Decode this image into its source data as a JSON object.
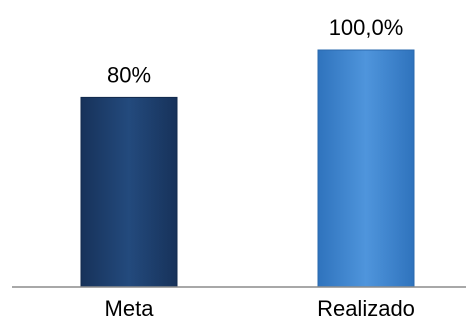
{
  "chart_data": {
    "type": "bar",
    "categories": [
      "Meta",
      "Realizado"
    ],
    "values": [
      80,
      100
    ],
    "data_labels": [
      "80%",
      "100,0%"
    ],
    "ylim": [
      0,
      100
    ],
    "grid": false,
    "colors": {
      "bar_fill": [
        "#1e3f6b",
        "#3f86d1"
      ],
      "bar_stroke": [
        "#122a4d",
        "#2a68ad"
      ],
      "axis_line": "#8c8c8c"
    }
  }
}
